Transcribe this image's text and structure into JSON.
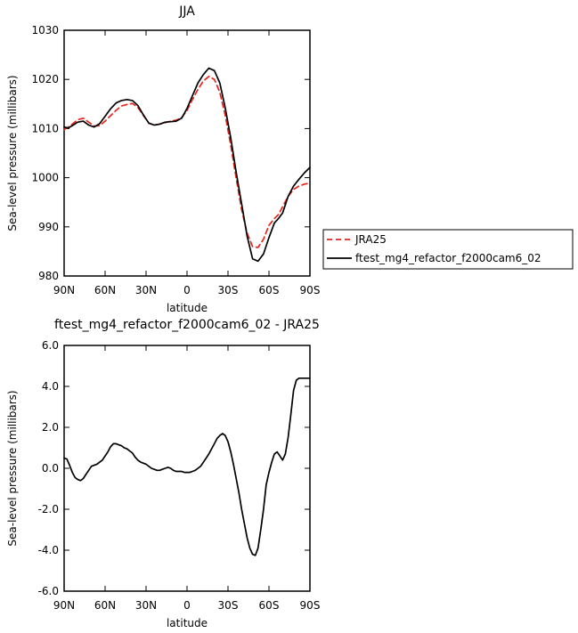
{
  "chart_data": [
    {
      "type": "line",
      "title": "JJA",
      "xlabel": "latitude",
      "ylabel": "Sea-level pressure (millibars)",
      "xlim": [
        -90,
        90
      ],
      "ylim": [
        980,
        1030
      ],
      "x_ticks": [
        {
          "value": -90,
          "label": "90N"
        },
        {
          "value": -60,
          "label": "60N"
        },
        {
          "value": -30,
          "label": "30N"
        },
        {
          "value": 0,
          "label": "0"
        },
        {
          "value": 30,
          "label": "30S"
        },
        {
          "value": 60,
          "label": "60S"
        },
        {
          "value": 90,
          "label": "90S"
        }
      ],
      "y_ticks": [
        {
          "value": 980,
          "label": "980"
        },
        {
          "value": 990,
          "label": "990"
        },
        {
          "value": 1000,
          "label": "1000"
        },
        {
          "value": 1010,
          "label": "1010"
        },
        {
          "value": 1020,
          "label": "1020"
        },
        {
          "value": 1030,
          "label": "1030"
        }
      ],
      "legend_position": "right",
      "series": [
        {
          "name": "JRA25",
          "color": "#e8241c",
          "dash": true,
          "x": [
            -90,
            -87,
            -84,
            -80,
            -76,
            -72,
            -68,
            -64,
            -60,
            -56,
            -52,
            -48,
            -44,
            -40,
            -36,
            -32,
            -28,
            -24,
            -20,
            -16,
            -12,
            -8,
            -4,
            0,
            4,
            8,
            12,
            16,
            20,
            24,
            28,
            32,
            36,
            40,
            44,
            48,
            52,
            56,
            60,
            64,
            67,
            70,
            74,
            78,
            82,
            86,
            90
          ],
          "values": [
            1009.8,
            1010.3,
            1010.9,
            1011.8,
            1012.1,
            1011.3,
            1010.5,
            1010.6,
            1011.5,
            1012.6,
            1013.7,
            1014.6,
            1014.9,
            1015.1,
            1014.3,
            1012.7,
            1011.1,
            1010.7,
            1010.9,
            1011.2,
            1011.5,
            1011.7,
            1012.2,
            1013.7,
            1015.9,
            1018.0,
            1019.7,
            1020.6,
            1020.0,
            1017.4,
            1012.7,
            1006.6,
            999.9,
            993.5,
            988.7,
            986.0,
            985.8,
            987.5,
            990.3,
            991.7,
            992.5,
            994.1,
            996.2,
            997.6,
            998.3,
            998.7,
            998.9
          ]
        },
        {
          "name": "ftest_mg4_refactor_f2000cam6_02",
          "color": "#000000",
          "dash": false,
          "x": [
            -90,
            -87,
            -84,
            -80,
            -76,
            -72,
            -68,
            -64,
            -60,
            -56,
            -52,
            -48,
            -44,
            -40,
            -36,
            -32,
            -28,
            -24,
            -20,
            -16,
            -12,
            -8,
            -4,
            0,
            4,
            8,
            12,
            16,
            20,
            24,
            28,
            32,
            36,
            40,
            44,
            48,
            52,
            56,
            60,
            64,
            67,
            70,
            74,
            78,
            82,
            86,
            90
          ],
          "values": [
            1010.3,
            1010.1,
            1010.6,
            1011.3,
            1011.5,
            1010.7,
            1010.3,
            1011.0,
            1012.5,
            1014.0,
            1015.2,
            1015.7,
            1015.9,
            1015.7,
            1014.7,
            1012.8,
            1011.1,
            1010.7,
            1010.9,
            1011.3,
            1011.4,
            1011.5,
            1012.1,
            1014.1,
            1016.7,
            1019.3,
            1021.0,
            1022.3,
            1021.8,
            1019.3,
            1014.2,
            1008.1,
            1001.1,
            994.7,
            988.1,
            983.5,
            983.0,
            984.5,
            987.8,
            990.8,
            991.7,
            992.8,
            996.2,
            998.3,
            999.7,
            1001.0,
            1002.1
          ]
        }
      ]
    },
    {
      "type": "line",
      "title": "ftest_mg4_refactor_f2000cam6_02 - JRA25",
      "xlabel": "latitude",
      "ylabel": "Sea-level pressure (millibars)",
      "xlim": [
        -90,
        90
      ],
      "ylim": [
        -6.0,
        6.0
      ],
      "x_ticks": [
        {
          "value": -90,
          "label": "90N"
        },
        {
          "value": -60,
          "label": "60N"
        },
        {
          "value": -30,
          "label": "30N"
        },
        {
          "value": 0,
          "label": "0"
        },
        {
          "value": 30,
          "label": "30S"
        },
        {
          "value": 60,
          "label": "60S"
        },
        {
          "value": 90,
          "label": "90S"
        }
      ],
      "y_ticks": [
        {
          "value": -6.0,
          "label": "-6.0"
        },
        {
          "value": -4.0,
          "label": "-4.0"
        },
        {
          "value": -2.0,
          "label": "-2.0"
        },
        {
          "value": 0.0,
          "label": "0.0"
        },
        {
          "value": 2.0,
          "label": "2.0"
        },
        {
          "value": 4.0,
          "label": "4.0"
        },
        {
          "value": 6.0,
          "label": "6.0"
        }
      ],
      "series": [
        {
          "color": "#000000",
          "dash": false,
          "x": [
            -90,
            -88,
            -86,
            -84,
            -82,
            -80,
            -78,
            -76,
            -74,
            -72,
            -70,
            -66,
            -62,
            -58,
            -56,
            -54,
            -52,
            -50,
            -48,
            -46,
            -44,
            -42,
            -40,
            -38,
            -36,
            -34,
            -30,
            -26,
            -22,
            -20,
            -18,
            -16,
            -14,
            -12,
            -10,
            -8,
            -6,
            -4,
            -2,
            0,
            2,
            4,
            6,
            8,
            10,
            12,
            14,
            16,
            18,
            20,
            22,
            24,
            26,
            28,
            30,
            32,
            34,
            36,
            38,
            40,
            42,
            44,
            46,
            48,
            50,
            52,
            54,
            56,
            58,
            60,
            62,
            64,
            66,
            68,
            70,
            72,
            74,
            76,
            78,
            80,
            82,
            84,
            86,
            88,
            90
          ],
          "values": [
            0.5,
            0.45,
            0.15,
            -0.2,
            -0.45,
            -0.55,
            -0.6,
            -0.5,
            -0.3,
            -0.1,
            0.1,
            0.2,
            0.4,
            0.8,
            1.05,
            1.2,
            1.2,
            1.15,
            1.1,
            1.0,
            0.95,
            0.85,
            0.75,
            0.55,
            0.4,
            0.3,
            0.2,
            0.0,
            -0.1,
            -0.1,
            -0.05,
            0.0,
            0.05,
            0.0,
            -0.1,
            -0.15,
            -0.15,
            -0.15,
            -0.2,
            -0.2,
            -0.2,
            -0.15,
            -0.1,
            0.0,
            0.1,
            0.3,
            0.5,
            0.7,
            0.95,
            1.2,
            1.45,
            1.6,
            1.7,
            1.6,
            1.3,
            0.8,
            0.2,
            -0.5,
            -1.2,
            -2.0,
            -2.7,
            -3.4,
            -3.9,
            -4.2,
            -4.25,
            -3.9,
            -3.0,
            -2.0,
            -0.8,
            -0.2,
            0.3,
            0.7,
            0.8,
            0.6,
            0.4,
            0.7,
            1.5,
            2.6,
            3.8,
            4.3,
            4.4,
            4.4,
            4.4,
            4.4,
            4.4
          ]
        }
      ]
    }
  ]
}
